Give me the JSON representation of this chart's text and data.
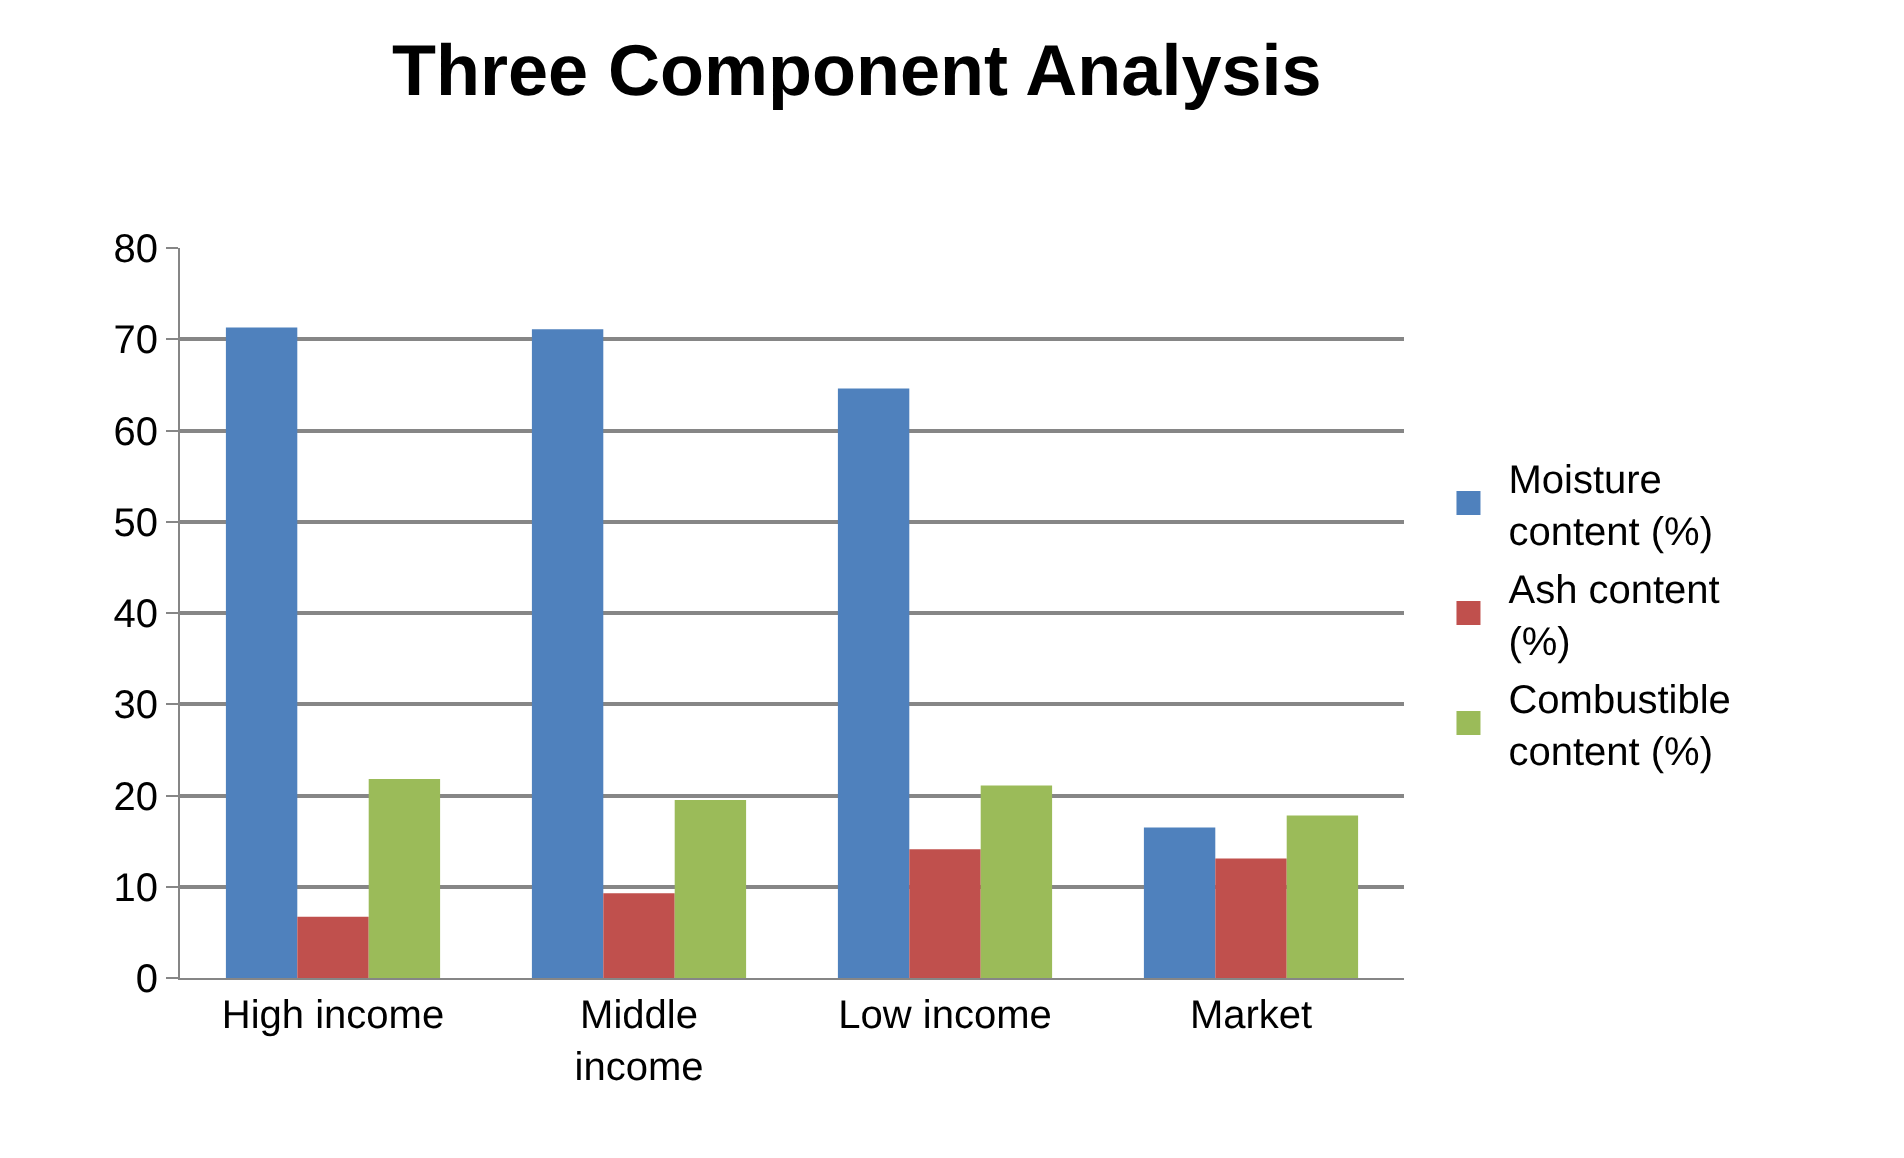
{
  "chart_data": {
    "type": "bar",
    "title": "Three Component Analysis",
    "categories": [
      "High income",
      "Middle income",
      "Low income",
      "Market"
    ],
    "series": [
      {
        "name": "Moisture content (%)",
        "color": "#4f81bd",
        "values": [
          71.3,
          71.1,
          64.6,
          16.5
        ]
      },
      {
        "name": "Ash content (%)",
        "color": "#c0504d",
        "values": [
          6.7,
          9.3,
          14.1,
          13.1
        ]
      },
      {
        "name": "Combustible content (%)",
        "color": "#9bbb59",
        "values": [
          21.8,
          19.5,
          21.1,
          17.8
        ]
      }
    ],
    "ylim": [
      0,
      80
    ],
    "yticks": [
      0,
      10,
      20,
      30,
      40,
      50,
      60,
      70,
      80
    ],
    "grid": "y",
    "legend": "right"
  }
}
